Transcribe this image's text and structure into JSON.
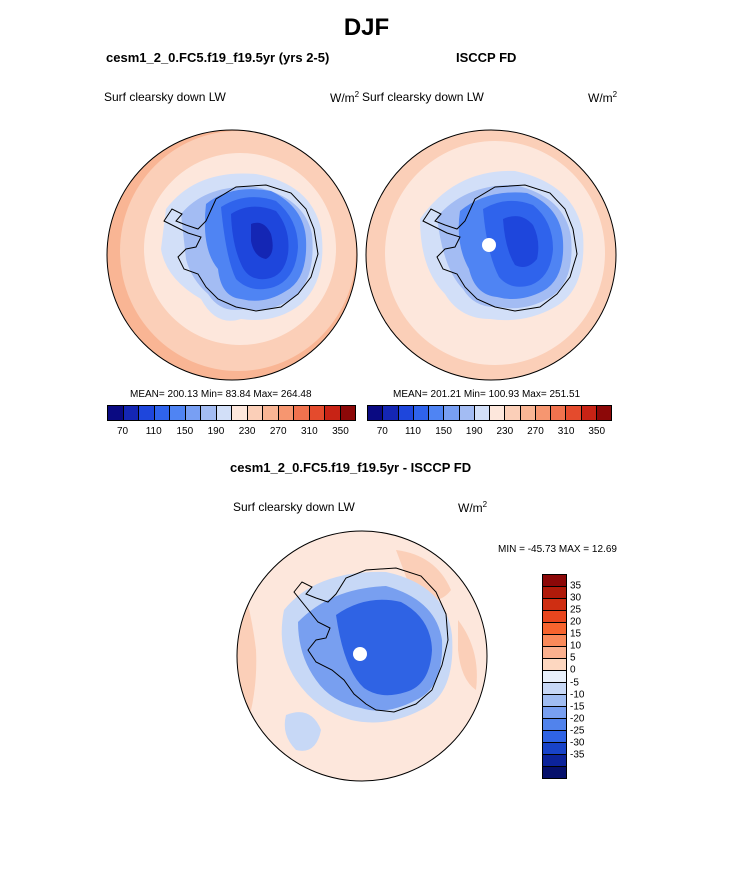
{
  "title": "DJF",
  "panel1": {
    "title": "cesm1_2_0.FC5.f19_f19.5yr (yrs 2-5)",
    "variable": "Surf clearsky down LW",
    "unit_base": "W/m",
    "unit_exp": "2",
    "stats": "MEAN= 200.13  Min=  83.84  Max= 264.48"
  },
  "panel2": {
    "title": "ISCCP FD",
    "variable": "Surf clearsky down LW",
    "unit_base": "W/m",
    "unit_exp": "2",
    "stats": "MEAN= 201.21  Min= 100.93  Max= 251.51"
  },
  "panel3": {
    "title": "cesm1_2_0.FC5.f19_f19.5yr - ISCCP FD",
    "variable": "Surf clearsky down LW",
    "unit_base": "W/m",
    "unit_exp": "2",
    "stats": "MIN = -45.73 MAX =  12.69"
  },
  "colorbar_top": {
    "colors": [
      "#0a0a82",
      "#1426b4",
      "#1e46dc",
      "#2f63ec",
      "#4f84f3",
      "#789ff3",
      "#a3bcf3",
      "#d2dff8",
      "#fde7dc",
      "#fbcfb8",
      "#f9b594",
      "#f69670",
      "#f0724e",
      "#e44b2d",
      "#c82315",
      "#8c0808"
    ],
    "tick_labels": [
      "70",
      "110",
      "150",
      "190",
      "230",
      "270",
      "310",
      "350"
    ]
  },
  "colorbar_diff": {
    "colors": [
      "#8c0808",
      "#b01a0a",
      "#cf2e12",
      "#e8461e",
      "#f7642e",
      "#fa8a5a",
      "#fbb08e",
      "#fdd7c0",
      "#e8f0fb",
      "#c7d8f6",
      "#a0bdf2",
      "#789ff0",
      "#5183ec",
      "#2f63e4",
      "#1843c8",
      "#0c239a",
      "#06106b"
    ],
    "tick_labels": [
      "35",
      "30",
      "25",
      "20",
      "15",
      "10",
      "5",
      "0",
      "-5",
      "-10",
      "-15",
      "-20",
      "-25",
      "-30",
      "-35"
    ]
  },
  "map_colors": {
    "ocean_outer": "#f9b594",
    "ocean_mid": "#fbcfb8",
    "ocean_inner": "#fde7dc",
    "shelf": "#d2dff8",
    "coast": "#a3bcf3",
    "ice_outer": "#4f84f3",
    "ice_mid": "#2f63ec",
    "ice_inner": "#1e46dc",
    "ice_core": "#1426b4",
    "diff_bg": "#fde7dc",
    "diff_pos": "#fbcfb8",
    "diff_light": "#c7d8f6",
    "diff_mid": "#789ff0",
    "diff_strong": "#2f63e4"
  }
}
